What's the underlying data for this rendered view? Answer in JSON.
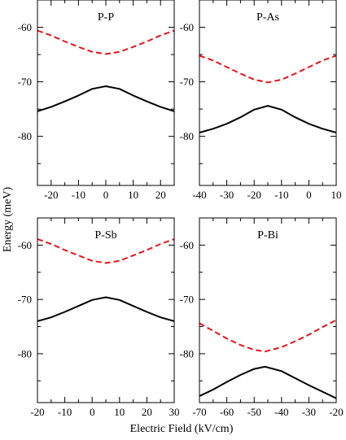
{
  "figure": {
    "ylabel": "Energy (meV)",
    "xlabel": "Electric Field (kV/cm)"
  },
  "chart_data": [
    {
      "type": "line",
      "title": "P-P",
      "xlim": [
        -25,
        25
      ],
      "ylim": [
        -89,
        -55
      ],
      "xticks": [
        -20,
        -10,
        0,
        10,
        20
      ],
      "yticks": [
        -60,
        -70,
        -80
      ],
      "xticklabels": [
        "-20",
        "-10",
        "0",
        "10",
        "20"
      ],
      "yticklabels": [
        "-60",
        "-70",
        "-80"
      ],
      "x": [
        -25,
        -20,
        -15,
        -10,
        -5,
        0,
        5,
        10,
        15,
        20,
        25
      ],
      "series": [
        {
          "style": "dashed",
          "color": "#e8141b",
          "values": [
            -60.6,
            -61.5,
            -62.6,
            -63.6,
            -64.5,
            -64.9,
            -64.5,
            -63.6,
            -62.6,
            -61.5,
            -60.6
          ]
        },
        {
          "style": "solid",
          "color": "#000000",
          "values": [
            -75.4,
            -74.6,
            -73.6,
            -72.5,
            -71.3,
            -70.8,
            -71.3,
            -72.5,
            -73.6,
            -74.6,
            -75.4
          ]
        }
      ]
    },
    {
      "type": "line",
      "title": "P-As",
      "xlim": [
        -40,
        10
      ],
      "ylim": [
        -89,
        -55
      ],
      "xticks": [
        -40,
        -30,
        -20,
        -10,
        0,
        10
      ],
      "yticks": [
        -60,
        -70,
        -80
      ],
      "xticklabels": [
        "-40",
        "-30",
        "-20",
        "-10",
        "0",
        "10"
      ],
      "yticklabels": [
        "-60",
        "-70",
        "-80"
      ],
      "x": [
        -40,
        -35,
        -30,
        -25,
        -20,
        -15,
        -10,
        -5,
        0,
        5,
        10
      ],
      "series": [
        {
          "style": "dashed",
          "color": "#e8141b",
          "values": [
            -65.2,
            -66.1,
            -67.3,
            -68.5,
            -69.6,
            -70.1,
            -69.6,
            -68.5,
            -67.3,
            -66.1,
            -65.2
          ]
        },
        {
          "style": "solid",
          "color": "#000000",
          "values": [
            -79.3,
            -78.6,
            -77.7,
            -76.5,
            -75.1,
            -74.4,
            -75.1,
            -76.5,
            -77.7,
            -78.6,
            -79.3
          ]
        }
      ]
    },
    {
      "type": "line",
      "title": "P-Sb",
      "xlim": [
        -20,
        30
      ],
      "ylim": [
        -89,
        -55
      ],
      "xticks": [
        -20,
        -10,
        0,
        10,
        20,
        30
      ],
      "yticks": [
        -60,
        -70,
        -80
      ],
      "xticklabels": [
        "-20",
        "-10",
        "0",
        "10",
        "20",
        "30"
      ],
      "yticklabels": [
        "-60",
        "-70",
        "-80"
      ],
      "x": [
        -20,
        -15,
        -10,
        -5,
        0,
        5,
        10,
        15,
        20,
        25,
        30
      ],
      "series": [
        {
          "style": "dashed",
          "color": "#e8141b",
          "values": [
            -58.9,
            -59.8,
            -60.9,
            -61.9,
            -62.9,
            -63.3,
            -62.9,
            -61.9,
            -60.9,
            -59.8,
            -58.9
          ]
        },
        {
          "style": "solid",
          "color": "#000000",
          "values": [
            -74.0,
            -73.3,
            -72.3,
            -71.2,
            -70.1,
            -69.6,
            -70.1,
            -71.2,
            -72.3,
            -73.3,
            -74.0
          ]
        }
      ]
    },
    {
      "type": "line",
      "title": "P-Bi",
      "xlim": [
        -70,
        -20
      ],
      "ylim": [
        -89,
        -55
      ],
      "xticks": [
        -70,
        -60,
        -50,
        -40,
        -30,
        -20
      ],
      "yticks": [
        -60,
        -70,
        -80
      ],
      "xticklabels": [
        "-70",
        "-60",
        "-50",
        "-40",
        "-30",
        "-20"
      ],
      "yticklabels": [
        "-60",
        "-70",
        "-80"
      ],
      "x": [
        -70,
        -65,
        -60,
        -55,
        -50,
        -46,
        -40,
        -35,
        -30,
        -25,
        -20
      ],
      "series": [
        {
          "style": "dashed",
          "color": "#e8141b",
          "values": [
            -74.4,
            -75.8,
            -77.2,
            -78.4,
            -79.3,
            -79.6,
            -78.8,
            -77.7,
            -76.5,
            -75.1,
            -73.8
          ]
        },
        {
          "style": "solid",
          "color": "#000000",
          "values": [
            -87.8,
            -86.6,
            -85.2,
            -83.9,
            -82.8,
            -82.4,
            -83.2,
            -84.5,
            -85.8,
            -87.0,
            -88.2
          ]
        }
      ]
    }
  ]
}
